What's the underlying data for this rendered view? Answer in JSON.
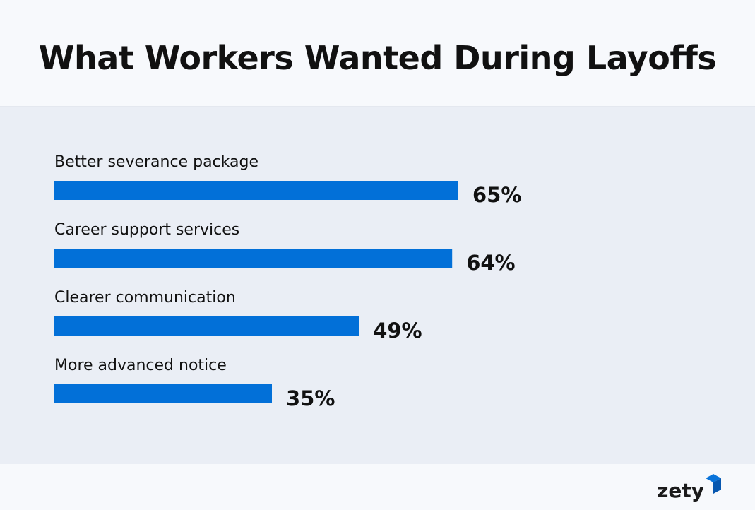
{
  "title": "What Workers Wanted During Layoffs",
  "brand": {
    "name": "zety",
    "accent_color": "#0a74da",
    "accent_dark": "#0858b0"
  },
  "bar_color": "#0270d8",
  "chart_data": {
    "type": "bar",
    "orientation": "horizontal",
    "title": "What Workers Wanted During Layoffs",
    "categories": [
      "Better severance package",
      "Career support services",
      "Clearer communication",
      "More advanced notice"
    ],
    "values": [
      65,
      64,
      49,
      35
    ],
    "value_labels": [
      "65%",
      "64%",
      "49%",
      "35%"
    ],
    "unit": "%",
    "xlim": [
      0,
      100
    ],
    "grid": false,
    "legend": "none"
  }
}
